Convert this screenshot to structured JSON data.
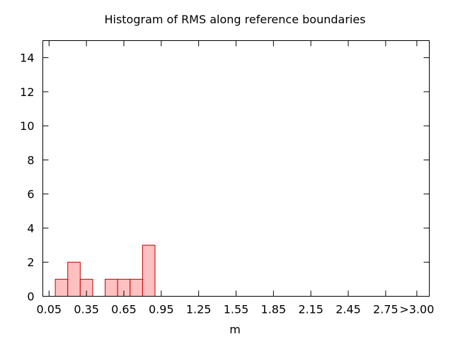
{
  "chart_data": {
    "type": "bar",
    "title": "Histogram of RMS along reference boundaries",
    "xlabel": "m",
    "ylabel": "",
    "bin_width": 0.1,
    "x_ticks": [
      "0.05",
      "0.35",
      "0.65",
      "0.95",
      "1.25",
      "1.55",
      "1.85",
      "2.15",
      "2.45",
      "2.75",
      ">3.00"
    ],
    "x_tick_values": [
      0.05,
      0.35,
      0.65,
      0.95,
      1.25,
      1.55,
      1.85,
      2.15,
      2.45,
      2.75,
      3.0
    ],
    "xlim": [
      0.0,
      3.1
    ],
    "ylim": [
      0,
      15
    ],
    "y_ticks": [
      0,
      2,
      4,
      6,
      8,
      10,
      12,
      14
    ],
    "bins": [
      {
        "center": 0.15,
        "count": 1
      },
      {
        "center": 0.25,
        "count": 2
      },
      {
        "center": 0.35,
        "count": 1
      },
      {
        "center": 0.55,
        "count": 1
      },
      {
        "center": 0.65,
        "count": 1
      },
      {
        "center": 0.75,
        "count": 1
      },
      {
        "center": 0.85,
        "count": 3
      }
    ],
    "colors": {
      "fill": "#ffc0c0",
      "stroke": "#c00000"
    },
    "grid": false,
    "legend": "none"
  }
}
